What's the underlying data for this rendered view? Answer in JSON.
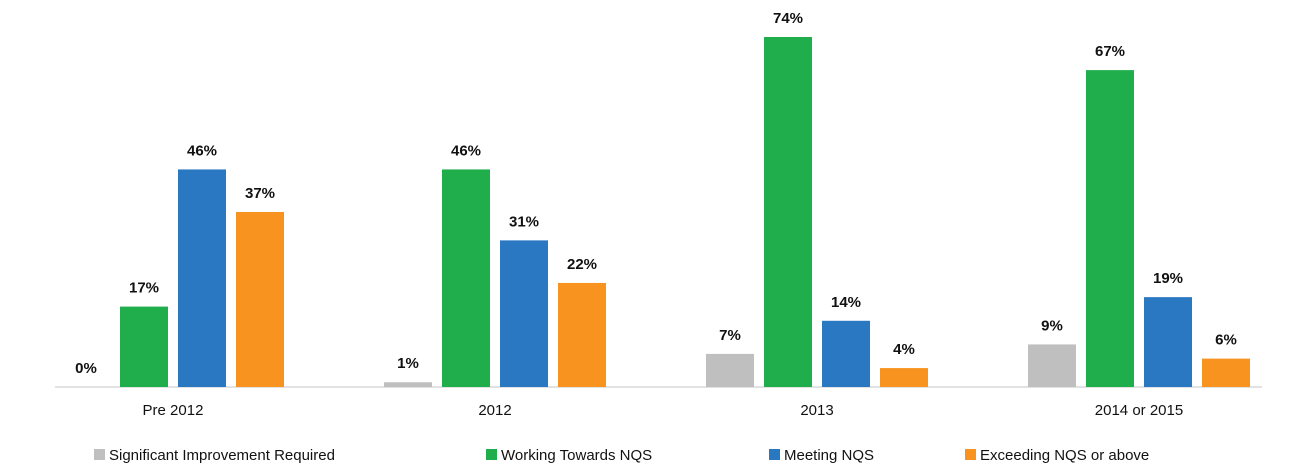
{
  "chart_data": {
    "type": "bar",
    "categories": [
      "Pre 2012",
      "2012",
      "2013",
      "2014 or 2015"
    ],
    "series": [
      {
        "name": "Significant Improvement Required",
        "color": "#bfbfbf",
        "values": [
          0,
          1,
          7,
          9
        ],
        "value_labels": [
          "0%",
          "1%",
          "7%",
          "9%"
        ]
      },
      {
        "name": "Working Towards NQS",
        "color": "#1fae4b",
        "values": [
          17,
          46,
          74,
          67
        ],
        "value_labels": [
          "17%",
          "46%",
          "74%",
          "67%"
        ]
      },
      {
        "name": "Meeting NQS",
        "color": "#2a78c2",
        "values": [
          46,
          31,
          14,
          19
        ],
        "value_labels": [
          "46%",
          "31%",
          "14%",
          "19%"
        ]
      },
      {
        "name": "Exceeding NQS or above",
        "color": "#f7931e",
        "values": [
          37,
          22,
          4,
          6
        ],
        "value_labels": [
          "37%",
          "22%",
          "4%",
          "6%"
        ]
      }
    ]
  }
}
